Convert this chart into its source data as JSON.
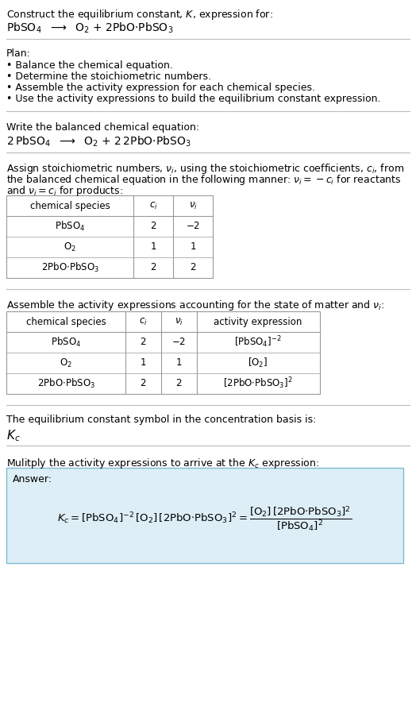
{
  "title_line1": "Construct the equilibrium constant, $K$, expression for:",
  "title_line2_plain": "PbSO",
  "plan_header": "Plan:",
  "plan_bullets": [
    "• Balance the chemical equation.",
    "• Determine the stoichiometric numbers.",
    "• Assemble the activity expression for each chemical species.",
    "• Use the activity expressions to build the equilibrium constant expression."
  ],
  "balanced_header": "Write the balanced chemical equation:",
  "stoich_para": "Assign stoichiometric numbers, $\\nu_i$, using the stoichiometric coefficients, $c_i$, from the balanced chemical equation in the following manner: $\\nu_i = -c_i$ for reactants and $\\nu_i = c_i$ for products:",
  "table1_header": [
    "chemical species",
    "$c_i$",
    "$\\nu_i$"
  ],
  "table1_rows": [
    [
      "$\\mathrm{PbSO_4}$",
      "2",
      "$-2$"
    ],
    [
      "$\\mathrm{O_2}$",
      "1",
      "1"
    ],
    [
      "$\\mathrm{2PbO{\\cdot}PbSO_3}$",
      "2",
      "2"
    ]
  ],
  "activity_header": "Assemble the activity expressions accounting for the state of matter and $\\nu_i$:",
  "table2_header": [
    "chemical species",
    "$c_i$",
    "$\\nu_i$",
    "activity expression"
  ],
  "table2_rows": [
    [
      "$\\mathrm{PbSO_4}$",
      "2",
      "$-2$",
      "$[\\mathrm{PbSO_4}]^{-2}$"
    ],
    [
      "$\\mathrm{O_2}$",
      "1",
      "1",
      "$[\\mathrm{O_2}]$"
    ],
    [
      "$\\mathrm{2PbO{\\cdot}PbSO_3}$",
      "2",
      "2",
      "$[\\mathrm{2PbO{\\cdot}PbSO_3}]^2$"
    ]
  ],
  "kc_section_text": "The equilibrium constant symbol in the concentration basis is:",
  "kc_symbol": "$K_c$",
  "multiply_text": "Mulitply the activity expressions to arrive at the $K_c$ expression:",
  "answer_label": "Answer:",
  "answer_eq": "$K_c = [\\mathrm{PbSO_4}]^{-2}\\,[\\mathrm{O_2}]\\,[\\mathrm{2PbO{\\cdot}PbSO_3}]^2 = \\dfrac{[\\mathrm{O_2}]\\,[\\mathrm{2PbO{\\cdot}PbSO_3}]^2}{[\\mathrm{PbSO_4}]^2}$",
  "bg_color": "#ffffff",
  "text_color": "#000000",
  "sep_color": "#bbbbbb",
  "table_line_color": "#999999",
  "answer_bg": "#ddeef6",
  "answer_border": "#7fbcd2",
  "font_size": 9.0
}
